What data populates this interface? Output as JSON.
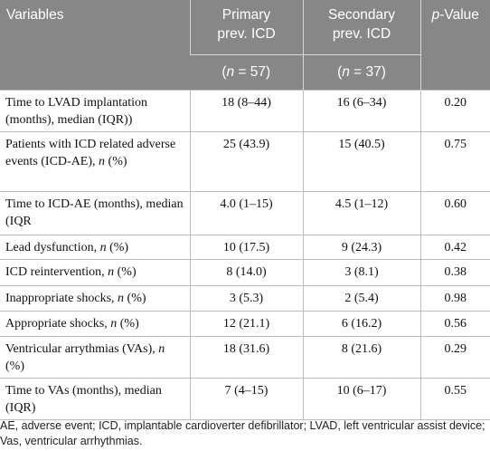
{
  "table": {
    "headers": [
      "Variables",
      "Primary prev. ICD",
      "Secondary prev. ICD",
      "p-Value"
    ],
    "subheaders": [
      "(n = 57)",
      "(n = 37)"
    ],
    "rows": [
      [
        "Time to LVAD implantation (months), median (IQR))",
        "18 (8–44)",
        "16 (6–34)",
        "0.20"
      ],
      [
        "Patients with ICD related adverse events (ICD-AE), n (%)",
        "25 (43.9)",
        "15 (40.5)",
        "0.75"
      ],
      [
        "Time to ICD-AE (months), median (IQR",
        "4.0 (1–15)",
        "4.5 (1–12)",
        "0.60"
      ],
      [
        "Lead dysfunction, n (%)",
        "10 (17.5)",
        "9 (24.3)",
        "0.42"
      ],
      [
        "ICD reintervention, n (%)",
        "8 (14.0)",
        "3 (8.1)",
        "0.38"
      ],
      [
        "Inappropriate shocks, n (%)",
        "3 (5.3)",
        "2 (5.4)",
        "0.98"
      ],
      [
        "Appropriate shocks, n (%)",
        "12 (21.1)",
        "6 (16.2)",
        "0.56"
      ],
      [
        "Ventricular arrythmias (VAs), n (%)",
        "18 (31.6)",
        "8 (21.6)",
        "0.29"
      ],
      [
        "Time to VAs (months), median (IQR)",
        "7 (4–15)",
        "10 (6–17)",
        "0.55"
      ]
    ]
  },
  "footnote": "AE, adverse event; ICD, implantable cardioverter defibrillator; LVAD, left ventricular assist device; Vas, ventricular arrhythmias."
}
